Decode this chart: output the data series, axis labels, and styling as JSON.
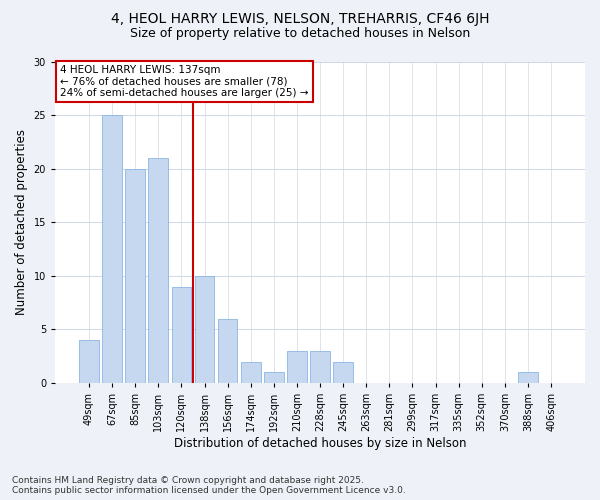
{
  "title_line1": "4, HEOL HARRY LEWIS, NELSON, TREHARRIS, CF46 6JH",
  "title_line2": "Size of property relative to detached houses in Nelson",
  "xlabel": "Distribution of detached houses by size in Nelson",
  "ylabel": "Number of detached properties",
  "categories": [
    "49sqm",
    "67sqm",
    "85sqm",
    "103sqm",
    "120sqm",
    "138sqm",
    "156sqm",
    "174sqm",
    "192sqm",
    "210sqm",
    "228sqm",
    "245sqm",
    "263sqm",
    "281sqm",
    "299sqm",
    "317sqm",
    "335sqm",
    "352sqm",
    "370sqm",
    "388sqm",
    "406sqm"
  ],
  "values": [
    4,
    25,
    20,
    21,
    9,
    10,
    6,
    2,
    1,
    3,
    3,
    2,
    0,
    0,
    0,
    0,
    0,
    0,
    0,
    1,
    0
  ],
  "bar_color": "#c5d8f0",
  "bar_edge_color": "#7aade0",
  "highlight_index": 5,
  "highlight_line_color": "#cc0000",
  "annotation_text": "4 HEOL HARRY LEWIS: 137sqm\n← 76% of detached houses are smaller (78)\n24% of semi-detached houses are larger (25) →",
  "annotation_box_color": "white",
  "annotation_box_edge_color": "#cc0000",
  "ylim": [
    0,
    30
  ],
  "yticks": [
    0,
    5,
    10,
    15,
    20,
    25,
    30
  ],
  "footer_text": "Contains HM Land Registry data © Crown copyright and database right 2025.\nContains public sector information licensed under the Open Government Licence v3.0.",
  "background_color": "#eef2f8",
  "plot_background_color": "#ffffff",
  "grid_color": "#d0d8e8",
  "title_fontsize": 10,
  "subtitle_fontsize": 9,
  "tick_fontsize": 7,
  "label_fontsize": 8.5,
  "annotation_fontsize": 7.5,
  "footer_fontsize": 6.5
}
